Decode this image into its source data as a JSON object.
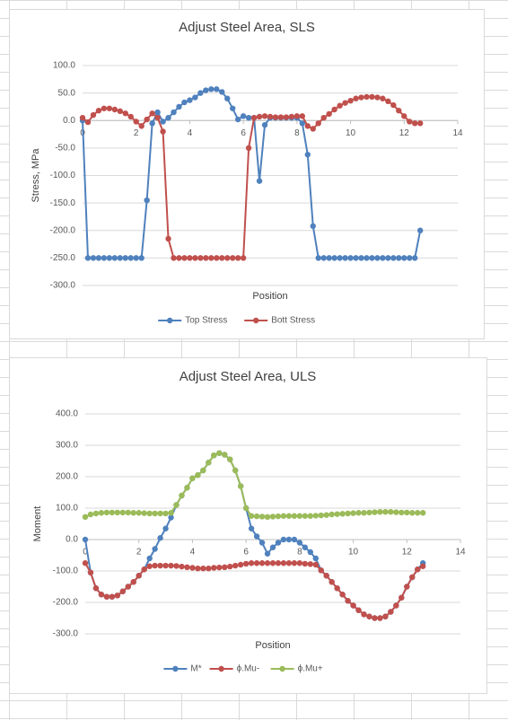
{
  "chart_data": [
    {
      "type": "line",
      "title": "Adjust Steel Area, SLS",
      "y_label": "Stress, MPa",
      "x_label": "Position",
      "x": [
        0,
        0.2,
        0.4,
        0.6,
        0.8,
        1,
        1.2,
        1.4,
        1.6,
        1.8,
        2,
        2.2,
        2.4,
        2.6,
        2.8,
        3,
        3.2,
        3.4,
        3.6,
        3.8,
        4,
        4.2,
        4.4,
        4.6,
        4.8,
        5,
        5.2,
        5.4,
        5.6,
        5.8,
        6,
        6.2,
        6.4,
        6.6,
        6.8,
        7,
        7.2,
        7.4,
        7.6,
        7.8,
        8,
        8.2,
        8.4,
        8.6,
        8.8,
        9,
        9.2,
        9.4,
        9.6,
        9.8,
        10,
        10.2,
        10.4,
        10.6,
        10.8,
        11,
        11.2,
        11.4,
        11.6,
        11.8,
        12,
        12.2,
        12.4,
        12.6
      ],
      "series": [
        {
          "name": "Top Stress",
          "color": "#4f81bd",
          "values": [
            0,
            -250,
            -250,
            -250,
            -250,
            -250,
            -250,
            -250,
            -250,
            -250,
            -250,
            -250,
            -145,
            -5,
            15,
            -2,
            5,
            15,
            25,
            33,
            37,
            42,
            50,
            55,
            57,
            57,
            52,
            40,
            22,
            2,
            8,
            5,
            5,
            -110,
            -8,
            5,
            5,
            5,
            5,
            5,
            5,
            -5,
            -62,
            -192,
            -250,
            -250,
            -250,
            -250,
            -250,
            -250,
            -250,
            -250,
            -250,
            -250,
            -250,
            -250,
            -250,
            -250,
            -250,
            -250,
            -250,
            -250,
            -250,
            -200
          ]
        },
        {
          "name": "Bott Stress",
          "color": "#c0504d",
          "values": [
            5,
            -3,
            10,
            18,
            22,
            22,
            20,
            17,
            13,
            7,
            -2,
            -10,
            2,
            13,
            5,
            -20,
            -215,
            -250,
            -250,
            -250,
            -250,
            -250,
            -250,
            -250,
            -250,
            -250,
            -250,
            -250,
            -250,
            -250,
            -250,
            -50,
            5,
            7,
            8,
            7,
            6,
            6,
            6,
            7,
            8,
            8,
            -10,
            -15,
            -5,
            5,
            12,
            20,
            27,
            32,
            36,
            40,
            42,
            43,
            43,
            42,
            40,
            35,
            28,
            18,
            8,
            -2,
            -5,
            -5
          ]
        }
      ],
      "xlim": [
        0,
        14
      ],
      "xticks": [
        0,
        2,
        4,
        6,
        8,
        10,
        12,
        14
      ],
      "ylim": [
        -300,
        100
      ],
      "yticks": [
        {
          "value": -300,
          "label": "-300.0"
        },
        {
          "value": -250,
          "label": "-250.0"
        },
        {
          "value": -200,
          "label": "-200.0"
        },
        {
          "value": -150,
          "label": "-150.0"
        },
        {
          "value": -100,
          "label": "-100.0"
        },
        {
          "value": -50,
          "label": "-50.0"
        },
        {
          "value": 0,
          "label": "0.0"
        },
        {
          "value": 50,
          "label": "50.0"
        },
        {
          "value": 100,
          "label": "100.0"
        }
      ],
      "grid": true,
      "legend": "bottom"
    },
    {
      "type": "line",
      "title": "Adjust Steel Area, ULS",
      "y_label": "Moment",
      "x_label": "Position",
      "x": [
        0,
        0.2,
        0.4,
        0.6,
        0.8,
        1,
        1.2,
        1.4,
        1.6,
        1.8,
        2,
        2.2,
        2.4,
        2.6,
        2.8,
        3,
        3.2,
        3.4,
        3.6,
        3.8,
        4,
        4.2,
        4.4,
        4.6,
        4.8,
        5,
        5.2,
        5.4,
        5.6,
        5.8,
        6,
        6.2,
        6.4,
        6.6,
        6.8,
        7,
        7.2,
        7.4,
        7.6,
        7.8,
        8,
        8.2,
        8.4,
        8.6,
        8.8,
        9,
        9.2,
        9.4,
        9.6,
        9.8,
        10,
        10.2,
        10.4,
        10.6,
        10.8,
        11,
        11.2,
        11.4,
        11.6,
        11.8,
        12,
        12.2,
        12.4,
        12.6
      ],
      "series": [
        {
          "name": "M*",
          "color": "#4f81bd",
          "values": [
            0,
            -105,
            -155,
            -175,
            -182,
            -182,
            -178,
            -165,
            -150,
            -135,
            -115,
            -95,
            -60,
            -30,
            5,
            35,
            70,
            110,
            140,
            165,
            195,
            205,
            220,
            245,
            268,
            275,
            270,
            255,
            220,
            170,
            100,
            35,
            10,
            -10,
            -45,
            -25,
            -10,
            0,
            0,
            0,
            -10,
            -25,
            -40,
            -60,
            -98,
            -115,
            -135,
            -155,
            -175,
            -195,
            -210,
            -225,
            -238,
            -245,
            -250,
            -250,
            -245,
            -230,
            -210,
            -185,
            -150,
            -120,
            -95,
            -75
          ]
        },
        {
          "name": "ϕ.Mu-",
          "color": "#c0504d",
          "values": [
            -75,
            -105,
            -155,
            -175,
            -182,
            -182,
            -178,
            -165,
            -150,
            -135,
            -115,
            -95,
            -85,
            -83,
            -83,
            -83,
            -83,
            -84,
            -86,
            -88,
            -90,
            -92,
            -92,
            -92,
            -90,
            -89,
            -88,
            -86,
            -83,
            -80,
            -77,
            -75,
            -75,
            -75,
            -75,
            -75,
            -75,
            -75,
            -75,
            -75,
            -75,
            -77,
            -78,
            -80,
            -98,
            -115,
            -135,
            -155,
            -175,
            -195,
            -210,
            -225,
            -238,
            -245,
            -250,
            -250,
            -245,
            -230,
            -210,
            -185,
            -150,
            -120,
            -95,
            -85
          ]
        },
        {
          "name": "ϕ.Mu+",
          "color": "#9bbb59",
          "values": [
            72,
            80,
            83,
            85,
            86,
            86,
            86,
            86,
            86,
            85,
            85,
            84,
            83,
            83,
            83,
            83,
            85,
            110,
            140,
            165,
            195,
            205,
            220,
            245,
            268,
            275,
            270,
            255,
            220,
            170,
            100,
            75,
            74,
            73,
            72,
            73,
            74,
            75,
            75,
            75,
            75,
            75,
            75,
            76,
            77,
            78,
            80,
            81,
            82,
            83,
            84,
            85,
            85,
            86,
            87,
            88,
            88,
            88,
            87,
            86,
            86,
            85,
            85,
            85
          ]
        }
      ],
      "xlim": [
        0,
        14
      ],
      "xticks": [
        0,
        2,
        4,
        6,
        8,
        10,
        12,
        14
      ],
      "ylim": [
        -300,
        400
      ],
      "yticks": [
        {
          "value": -300,
          "label": "-300.0"
        },
        {
          "value": -200,
          "label": "-200.0"
        },
        {
          "value": -100,
          "label": "-100.0"
        },
        {
          "value": 0,
          "label": "0.0"
        },
        {
          "value": 100,
          "label": "100.0"
        },
        {
          "value": 200,
          "label": "200.0"
        },
        {
          "value": 300,
          "label": "300.0"
        },
        {
          "value": 400,
          "label": "400.0"
        }
      ],
      "grid": true,
      "legend": "bottom"
    }
  ]
}
